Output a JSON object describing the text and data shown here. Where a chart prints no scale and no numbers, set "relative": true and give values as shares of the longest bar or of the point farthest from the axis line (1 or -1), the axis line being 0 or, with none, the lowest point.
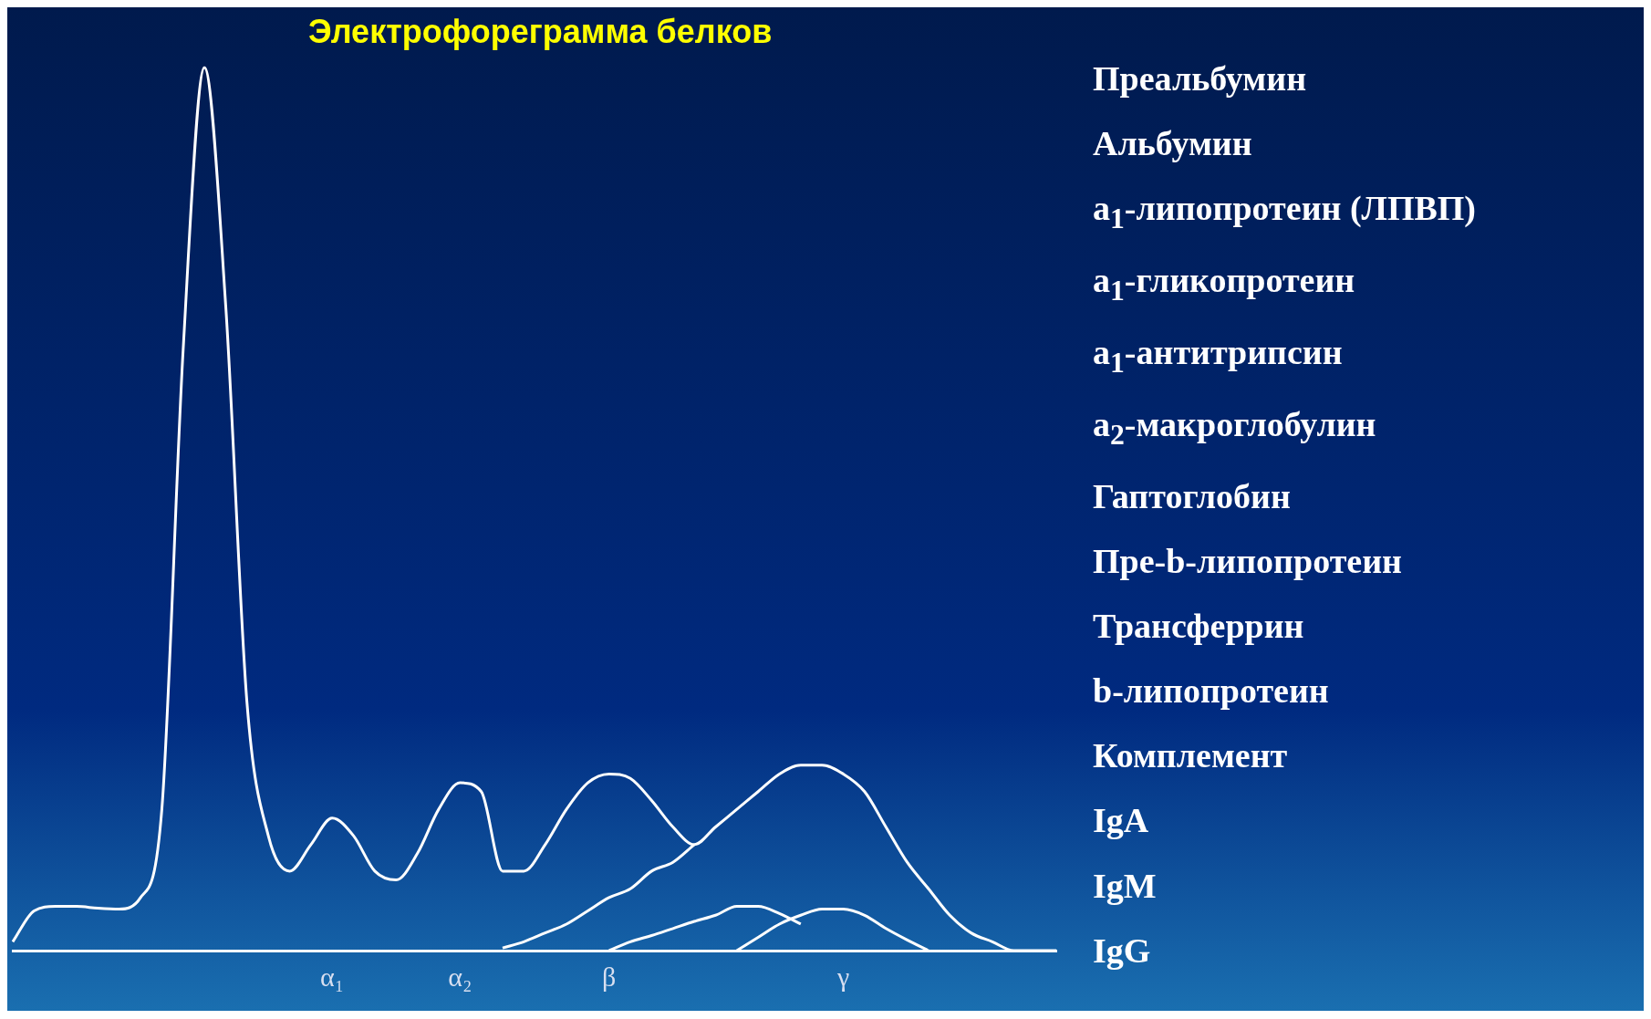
{
  "chart_data": {
    "type": "line",
    "title": "Электрофореграмма белков",
    "relative": true,
    "marker": "none",
    "line_style": "solid",
    "grid": false,
    "legend": false,
    "categories": [
      null,
      null,
      null,
      null,
      null,
      null,
      null,
      null,
      null,
      null,
      null,
      null,
      null,
      null,
      null,
      "α₁",
      null,
      null,
      null,
      null,
      null,
      "α₂",
      null,
      null,
      null,
      null,
      null,
      null,
      "β",
      null,
      null,
      null,
      null,
      null,
      null,
      null,
      null,
      null,
      null,
      "γ",
      null,
      null,
      null,
      null,
      null,
      null,
      null,
      null,
      null,
      null
    ],
    "series": [
      {
        "color": "#ffffff",
        "values": [
          0.01,
          0.045,
          0.05,
          0.05,
          0.048,
          0.047,
          0.06,
          0.16,
          0.68,
          1.0,
          0.73,
          0.28,
          0.13,
          0.09,
          0.12,
          0.15,
          0.13,
          0.09,
          0.08,
          0.11,
          0.16,
          0.19,
          0.18,
          0.09,
          0.09,
          0.12,
          0.16,
          0.19,
          0.2,
          0.195,
          0.17,
          0.14,
          0.12,
          0.14,
          0.16,
          0.18,
          0.2,
          0.21,
          0.21,
          0.2,
          0.18,
          0.14,
          0.1,
          0.07,
          0.04,
          0.02,
          0.01,
          0,
          0,
          0
        ]
      },
      {
        "color": "#ffffff",
        "values": [
          null,
          null,
          null,
          null,
          null,
          null,
          null,
          null,
          null,
          null,
          null,
          null,
          null,
          null,
          null,
          null,
          null,
          null,
          null,
          null,
          null,
          null,
          null,
          0.003,
          0.01,
          0.02,
          0.03,
          0.045,
          0.06,
          0.07,
          0.09,
          0.1,
          0.12,
          null,
          null,
          null,
          null,
          null,
          null,
          null,
          null,
          null,
          null,
          null,
          null,
          null,
          null,
          null,
          null,
          null
        ]
      },
      {
        "color": "#ffffff",
        "values": [
          null,
          null,
          null,
          null,
          null,
          null,
          null,
          null,
          null,
          null,
          null,
          null,
          null,
          null,
          null,
          null,
          null,
          null,
          null,
          null,
          null,
          null,
          null,
          null,
          null,
          null,
          null,
          null,
          0,
          0.01,
          0.017,
          0.025,
          0.033,
          0.04,
          0.05,
          0.05,
          0.042,
          0.03,
          null,
          null,
          null,
          null,
          null,
          null,
          null,
          null,
          null,
          null,
          null,
          null
        ]
      },
      {
        "color": "#ffffff",
        "values": [
          null,
          null,
          null,
          null,
          null,
          null,
          null,
          null,
          null,
          null,
          null,
          null,
          null,
          null,
          null,
          null,
          null,
          null,
          null,
          null,
          null,
          null,
          null,
          null,
          null,
          null,
          null,
          null,
          null,
          null,
          null,
          null,
          null,
          null,
          0,
          0.015,
          0.03,
          0.04,
          0.047,
          0.047,
          0.04,
          0.025,
          0.012,
          0,
          null,
          null,
          null,
          null,
          null,
          null
        ]
      }
    ],
    "annotations": [
      "Преальбумин",
      "Альбумин",
      "a$_{1}$-липопротеин (ЛПВП)",
      "a$_{1}$-гликопротеин",
      "a$_{1}$-антитрипсин",
      "a$_{2}$-макроглобулин",
      "Гаптоглобин",
      "Пре-b-липопротеин",
      "Трансферрин",
      "b-липопротеин",
      "Комплемент",
      "IgA",
      "IgM",
      "IgG"
    ]
  }
}
